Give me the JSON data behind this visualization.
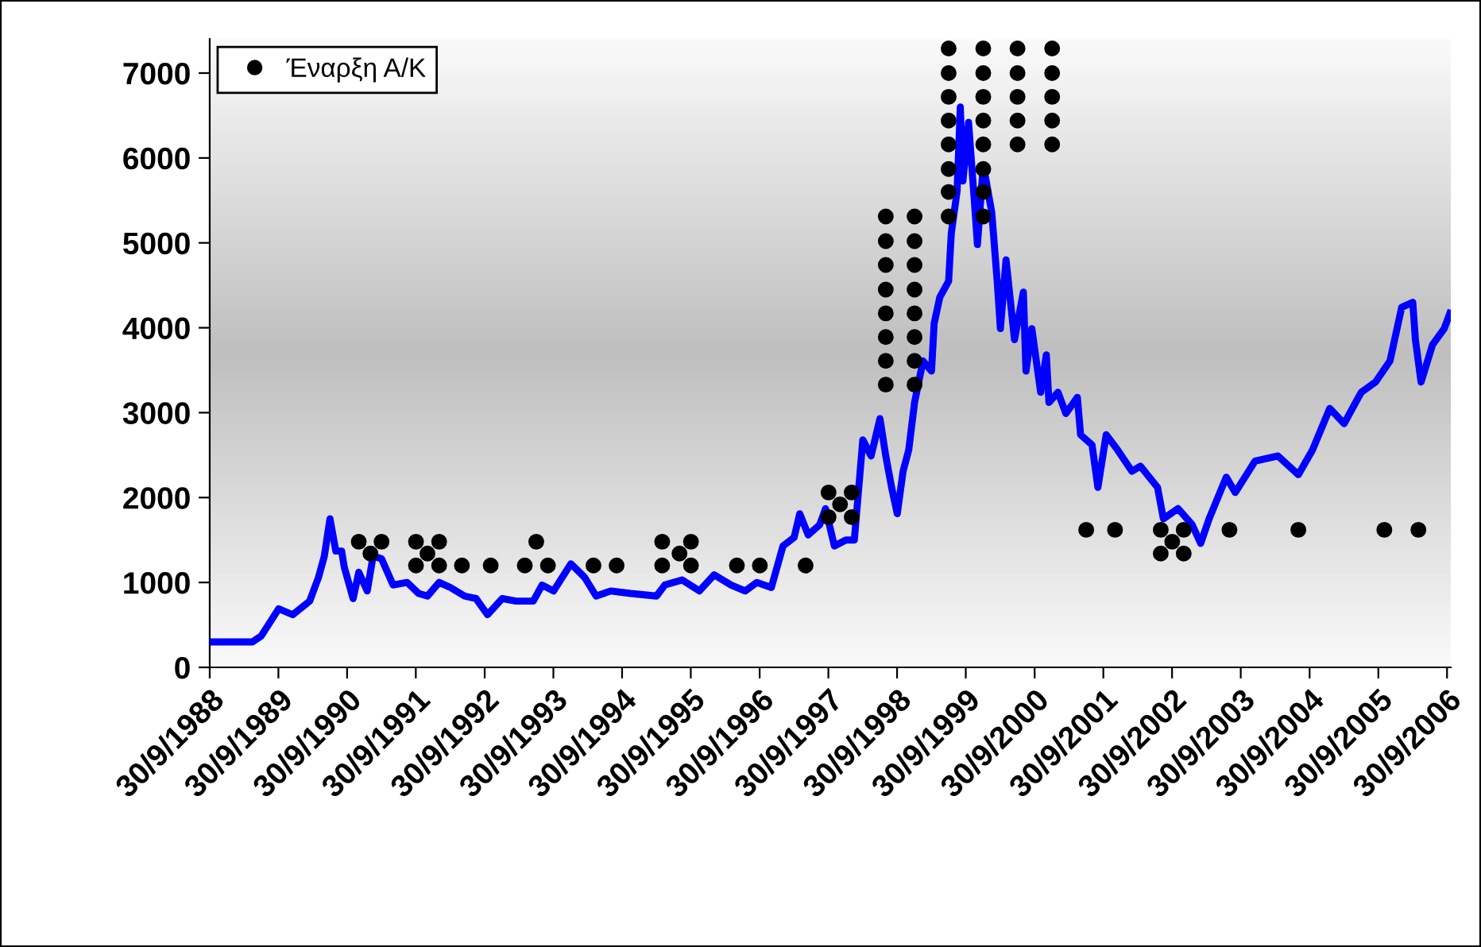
{
  "chart_data": {
    "type": "line",
    "xlim": [
      "1988-09-30",
      "2006-10-20"
    ],
    "ylim": [
      0,
      7400
    ],
    "xticks": [
      {
        "value": "1988-09-30",
        "label": "30/9/1988"
      },
      {
        "value": "1989-09-30",
        "label": "30/9/1989"
      },
      {
        "value": "1990-09-30",
        "label": "30/9/1990"
      },
      {
        "value": "1991-09-30",
        "label": "30/9/1991"
      },
      {
        "value": "1992-09-30",
        "label": "30/9/1992"
      },
      {
        "value": "1993-09-30",
        "label": "30/9/1993"
      },
      {
        "value": "1994-09-30",
        "label": "30/9/1994"
      },
      {
        "value": "1995-09-30",
        "label": "30/9/1995"
      },
      {
        "value": "1996-09-30",
        "label": "30/9/1996"
      },
      {
        "value": "1997-09-30",
        "label": "30/9/1997"
      },
      {
        "value": "1998-09-30",
        "label": "30/9/1998"
      },
      {
        "value": "1999-09-30",
        "label": "30/9/1999"
      },
      {
        "value": "2000-09-30",
        "label": "30/9/2000"
      },
      {
        "value": "2001-09-30",
        "label": "30/9/2001"
      },
      {
        "value": "2002-09-30",
        "label": "30/9/2002"
      },
      {
        "value": "2003-09-30",
        "label": "30/9/2003"
      },
      {
        "value": "2004-09-30",
        "label": "30/9/2004"
      },
      {
        "value": "2005-09-30",
        "label": "30/9/2005"
      },
      {
        "value": "2006-09-30",
        "label": "30/9/2006"
      }
    ],
    "yticks": [
      0,
      1000,
      2000,
      3000,
      4000,
      5000,
      6000,
      7000
    ],
    "grid": false,
    "legend": "top left",
    "series": [
      {
        "color": "#0000ff",
        "marker": "none",
        "line_style": "solid",
        "x": [
          "1988-10-01",
          "1989-05-15",
          "1989-07-01",
          "1989-10-01",
          "1989-12-15",
          "1990-03-15",
          "1990-05-01",
          "1990-06-01",
          "1990-07-01",
          "1990-08-01",
          "1990-09-01",
          "1990-09-15",
          "1990-11-01",
          "1990-12-01",
          "1991-01-15",
          "1991-02-15",
          "1991-04-01",
          "1991-06-01",
          "1991-08-15",
          "1991-10-15",
          "1991-12-01",
          "1992-02-01",
          "1992-04-01",
          "1992-06-15",
          "1992-08-15",
          "1992-10-15",
          "1993-01-01",
          "1993-03-15",
          "1993-06-15",
          "1993-08-01",
          "1993-10-01",
          "1994-01-01",
          "1994-03-15",
          "1994-05-15",
          "1994-08-01",
          "1994-11-15",
          "1995-04-01",
          "1995-05-15",
          "1995-08-15",
          "1995-11-15",
          "1996-02-01",
          "1996-05-01",
          "1996-07-15",
          "1996-09-15",
          "1996-12-01",
          "1997-02-01",
          "1997-04-01",
          "1997-05-01",
          "1997-06-15",
          "1997-08-15",
          "1997-09-15",
          "1997-11-01",
          "1998-01-01",
          "1998-02-15",
          "1998-04-01",
          "1998-05-15",
          "1998-07-01",
          "1998-08-01",
          "1998-09-01",
          "1998-10-01",
          "1998-11-01",
          "1998-12-01",
          "1999-01-01",
          "1999-02-15",
          "1999-04-01",
          "1999-04-15",
          "1999-05-15",
          "1999-07-01",
          "1999-07-15",
          "1999-08-15",
          "1999-09-01",
          "1999-09-15",
          "1999-10-15",
          "1999-11-15",
          "1999-12-01",
          "2000-01-01",
          "2000-02-15",
          "2000-03-15",
          "2000-04-01",
          "2000-05-01",
          "2000-06-15",
          "2000-08-01",
          "2000-08-15",
          "2000-09-15",
          "2000-11-01",
          "2000-12-01",
          "2000-12-15",
          "2001-02-01",
          "2001-03-15",
          "2001-05-15",
          "2001-06-01",
          "2001-08-01",
          "2001-09-01",
          "2001-10-15",
          "2001-12-15",
          "2002-03-01",
          "2002-04-15",
          "2002-07-15",
          "2002-08-15",
          "2002-11-01",
          "2003-01-15",
          "2003-03-01",
          "2003-04-15",
          "2003-07-15",
          "2003-09-01",
          "2003-12-15",
          "2004-04-15",
          "2004-08-01",
          "2004-10-15",
          "2005-01-15",
          "2005-04-01",
          "2005-07-01",
          "2005-09-15",
          "2005-12-01",
          "2006-02-01",
          "2006-04-01",
          "2006-04-15",
          "2006-05-15",
          "2006-07-15",
          "2006-09-15",
          "2006-10-15"
        ],
        "values": [
          300,
          300,
          370,
          690,
          620,
          780,
          1060,
          1310,
          1750,
          1370,
          1370,
          1180,
          810,
          1120,
          900,
          1310,
          1280,
          970,
          1000,
          870,
          840,
          1000,
          940,
          840,
          810,
          620,
          810,
          780,
          780,
          970,
          900,
          1220,
          1060,
          840,
          900,
          870,
          840,
          970,
          1030,
          900,
          1090,
          970,
          900,
          1000,
          940,
          1430,
          1530,
          1810,
          1560,
          1680,
          1870,
          1430,
          1500,
          1500,
          2680,
          2490,
          2930,
          2490,
          2120,
          1810,
          2310,
          2560,
          3120,
          3610,
          3490,
          4050,
          4360,
          4550,
          5110,
          5610,
          6600,
          5730,
          6420,
          5480,
          4980,
          5920,
          5360,
          4550,
          3990,
          4800,
          3860,
          4420,
          3490,
          3990,
          3240,
          3680,
          3120,
          3240,
          2990,
          3180,
          2740,
          2620,
          2120,
          2740,
          2560,
          2310,
          2370,
          2120,
          1750,
          1870,
          1680,
          1460,
          1750,
          2240,
          2060,
          2430,
          2490,
          2270,
          2560,
          3050,
          2870,
          3240,
          3360,
          3610,
          4240,
          4300,
          3860,
          3360,
          3800,
          3990,
          4170
        ]
      },
      {
        "type": "scatter",
        "name": "Έναρξη Α/Κ",
        "color": "#000000",
        "marker": "circle",
        "x": [
          "1990-12",
          "1991-02",
          "1991-04",
          "1991-10",
          "1991-10",
          "1991-12",
          "1992-02",
          "1992-02",
          "1992-06",
          "1992-11",
          "1993-05",
          "1993-07",
          "1993-09",
          "1994-05",
          "1994-09",
          "1995-05",
          "1995-05",
          "1995-08",
          "1995-10",
          "1995-10",
          "1996-06",
          "1996-10",
          "1997-06",
          "1997-10",
          "1997-10",
          "1997-12",
          "1998-02",
          "1998-02",
          "1998-08",
          "1998-08",
          "1998-08",
          "1998-08",
          "1998-08",
          "1998-08",
          "1998-08",
          "1998-08",
          "1999-01",
          "1999-01",
          "1999-01",
          "1999-01",
          "1999-01",
          "1999-01",
          "1999-01",
          "1999-01",
          "1999-07",
          "1999-07",
          "1999-07",
          "1999-07",
          "1999-07",
          "1999-07",
          "1999-07",
          "1999-07",
          "2000-01",
          "2000-01",
          "2000-01",
          "2000-01",
          "2000-01",
          "2000-01",
          "2000-01",
          "2000-01",
          "2000-07",
          "2000-07",
          "2000-07",
          "2000-07",
          "2000-07",
          "2001-01",
          "2001-01",
          "2001-01",
          "2001-01",
          "2001-01",
          "2001-07",
          "2001-12",
          "2002-08",
          "2002-08",
          "2002-10",
          "2002-12",
          "2002-12",
          "2003-08",
          "2004-08",
          "2005-11",
          "2006-05"
        ],
        "values": [
          1480,
          1340,
          1480,
          1480,
          1200,
          1340,
          1480,
          1200,
          1200,
          1200,
          1200,
          1480,
          1200,
          1200,
          1200,
          1480,
          1200,
          1340,
          1480,
          1200,
          1200,
          1200,
          1200,
          2060,
          1770,
          1920,
          2060,
          1770,
          5310,
          5020,
          4740,
          4450,
          4170,
          3890,
          3610,
          3330,
          5310,
          5020,
          4740,
          4450,
          4170,
          3890,
          3610,
          3330,
          7290,
          7000,
          6720,
          6440,
          6160,
          5870,
          5600,
          5310,
          7290,
          7000,
          6720,
          6440,
          6160,
          5870,
          5600,
          5310,
          7290,
          7000,
          6720,
          6440,
          6160,
          7290,
          7000,
          6720,
          6440,
          6160,
          1620,
          1620,
          1620,
          1340,
          1480,
          1620,
          1340,
          1620,
          1620,
          1620,
          1620
        ]
      }
    ]
  }
}
